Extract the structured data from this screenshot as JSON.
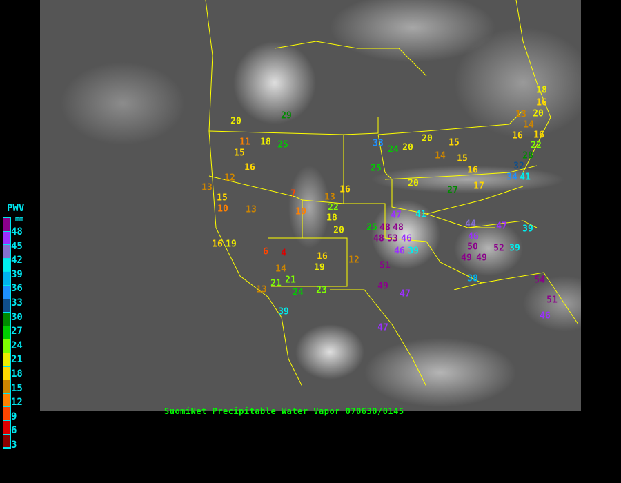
{
  "caption": "SuomiNet Precipitable Water Vapor 070630/0145",
  "legend": {
    "title": "PWV",
    "unit": "mm",
    "ticks": [
      "48",
      "45",
      "42",
      "39",
      "36",
      "33",
      "30",
      "27",
      "24",
      "21",
      "18",
      "15",
      "12",
      "9",
      "6",
      "3"
    ],
    "colors_top_to_bottom": [
      "#8b008b",
      "#9b30ff",
      "#8470d0",
      "#00eeee",
      "#00b2ee",
      "#1e90ff",
      "#104e8b",
      "#008b00",
      "#00cd00",
      "#7fff00",
      "#eeee00",
      "#ffd700",
      "#cd8500",
      "#ff8000",
      "#ff4500",
      "#dd0000",
      "#8b0000"
    ]
  },
  "colors": {
    "map_background": "#555555",
    "borders": "#ffff00",
    "text": "#00e5ee",
    "caption": "#00ff00"
  },
  "stations": [
    "29",
    "20",
    "11",
    "18",
    "25",
    "15",
    "16",
    "12",
    "13",
    "7",
    "16",
    "15",
    "10",
    "13",
    "10",
    "13",
    "22",
    "18",
    "20",
    "16",
    "19",
    "6",
    "4",
    "14",
    "16",
    "19",
    "12",
    "21",
    "21",
    "13",
    "24",
    "23",
    "39",
    "33",
    "24",
    "20",
    "20",
    "15",
    "14",
    "15",
    "16",
    "25",
    "20",
    "27",
    "17",
    "18",
    "16",
    "13",
    "20",
    "14",
    "16",
    "16",
    "22",
    "28",
    "32",
    "34",
    "41",
    "47",
    "41",
    "25",
    "48",
    "48",
    "46",
    "48",
    "53",
    "51",
    "46",
    "39",
    "49",
    "47",
    "47",
    "44",
    "47",
    "39",
    "46",
    "50",
    "52",
    "39",
    "49",
    "49",
    "38",
    "54",
    "51",
    "46"
  ]
}
